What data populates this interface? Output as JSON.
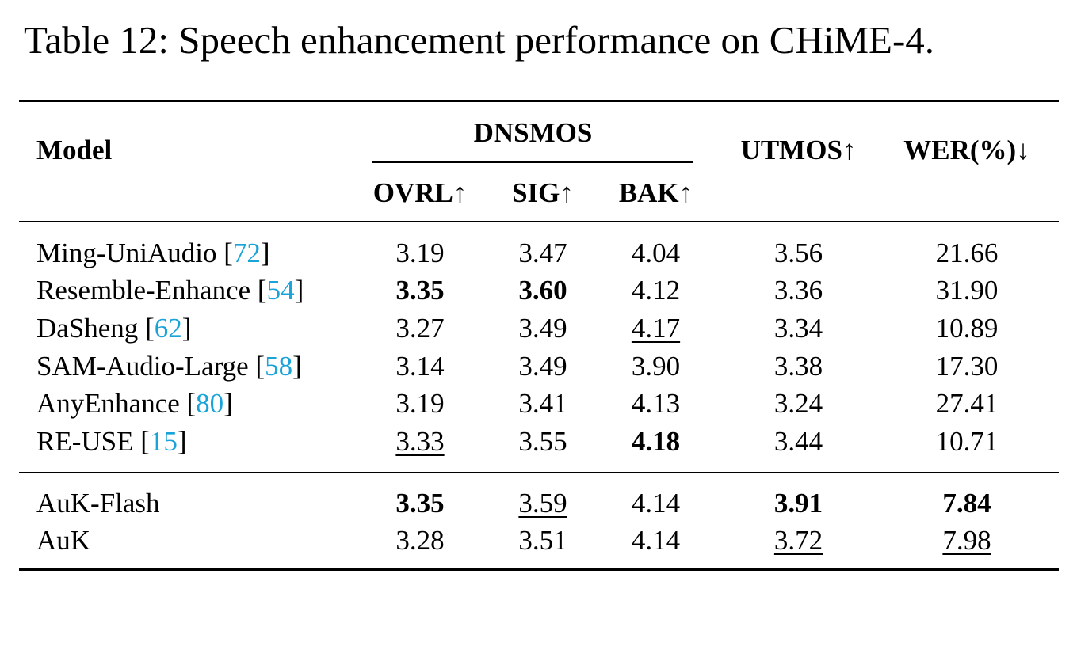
{
  "caption": "Table 12: Speech enhancement performance on CHiME-4.",
  "colors": {
    "citation": "#1aa3d8",
    "text": "#000000"
  },
  "header": {
    "model": "Model",
    "group": "DNSMOS",
    "ovrl": "OVRL↑",
    "sig": "SIG↑",
    "bak": "BAK↑",
    "utmos": "UTMOS↑",
    "wer": "WER(%)↓"
  },
  "rows": [
    {
      "name": "Ming-UniAudio",
      "cite": "72",
      "ovrl": "3.19",
      "sig": "3.47",
      "bak": "4.04",
      "utmos": "3.56",
      "wer": "21.66"
    },
    {
      "name": "Resemble-Enhance",
      "cite": "54",
      "ovrl": "3.35",
      "sig": "3.60",
      "bak": "4.12",
      "utmos": "3.36",
      "wer": "31.90"
    },
    {
      "name": "DaSheng",
      "cite": "62",
      "ovrl": "3.27",
      "sig": "3.49",
      "bak": "4.17",
      "utmos": "3.34",
      "wer": "10.89"
    },
    {
      "name": "SAM-Audio-Large",
      "cite": "58",
      "ovrl": "3.14",
      "sig": "3.49",
      "bak": "3.90",
      "utmos": "3.38",
      "wer": "17.30"
    },
    {
      "name": "AnyEnhance",
      "cite": "80",
      "ovrl": "3.19",
      "sig": "3.41",
      "bak": "4.13",
      "utmos": "3.24",
      "wer": "27.41"
    },
    {
      "name": "RE-USE",
      "cite": "15",
      "ovrl": "3.33",
      "sig": "3.55",
      "bak": "4.18",
      "utmos": "3.44",
      "wer": "10.71"
    },
    {
      "name": "AuK-Flash",
      "cite": "",
      "ovrl": "3.35",
      "sig": "3.59",
      "bak": "4.14",
      "utmos": "3.91",
      "wer": "7.84"
    },
    {
      "name": "AuK",
      "cite": "",
      "ovrl": "3.28",
      "sig": "3.51",
      "bak": "4.14",
      "utmos": "3.72",
      "wer": "7.98"
    }
  ]
}
